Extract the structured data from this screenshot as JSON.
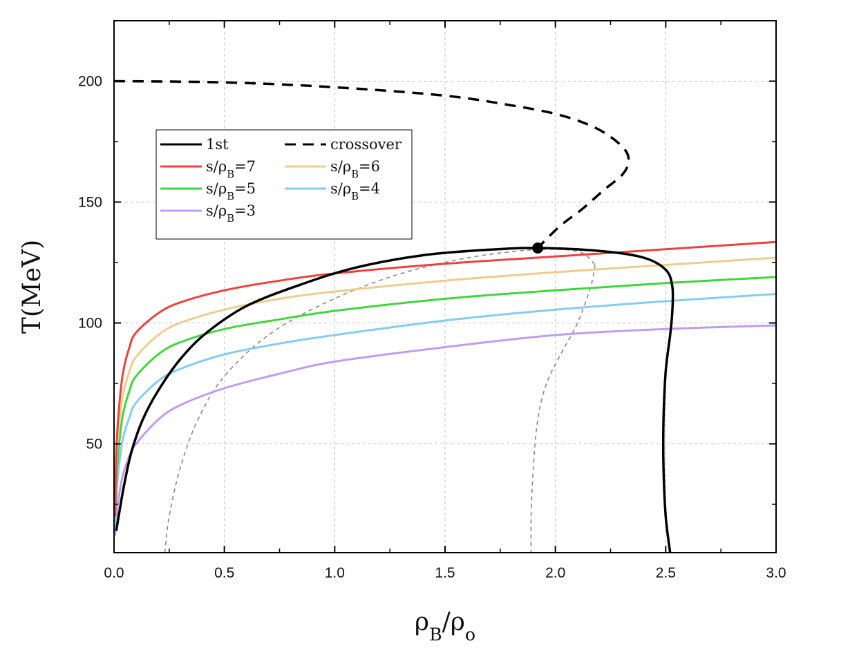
{
  "chart_data": {
    "type": "line",
    "title": "",
    "xlabel": "ρB/ρo",
    "ylabel": "T(MeV)",
    "xlim": [
      0,
      3.0
    ],
    "ylim": [
      5,
      225
    ],
    "xticks": [
      0.0,
      0.5,
      1.0,
      1.5,
      2.0,
      2.5,
      3.0
    ],
    "xtick_labels": [
      "0.0",
      "0.5",
      "1.0",
      "1.5",
      "2.0",
      "2.5",
      "3.0"
    ],
    "yticks": [
      50,
      100,
      150,
      200
    ],
    "ytick_labels": [
      "50",
      "100",
      "150",
      "200"
    ],
    "grid": true,
    "legend_position": "upper-left",
    "series": [
      {
        "name": "1st",
        "legend": true,
        "style": "solid",
        "color": "#000000",
        "points": [
          [
            2.52,
            5
          ],
          [
            2.5,
            20
          ],
          [
            2.49,
            40
          ],
          [
            2.49,
            60
          ],
          [
            2.5,
            80
          ],
          [
            2.52,
            95
          ],
          [
            2.53,
            105
          ],
          [
            2.53,
            115
          ],
          [
            2.5,
            122
          ],
          [
            2.4,
            127
          ],
          [
            2.2,
            129.8
          ],
          [
            1.92,
            131
          ],
          [
            1.7,
            130.3
          ],
          [
            1.4,
            128
          ],
          [
            1.1,
            123
          ],
          [
            0.85,
            116
          ],
          [
            0.6,
            107
          ],
          [
            0.42,
            96
          ],
          [
            0.3,
            85
          ],
          [
            0.2,
            72
          ],
          [
            0.13,
            60
          ],
          [
            0.08,
            47
          ],
          [
            0.05,
            35
          ],
          [
            0.03,
            25
          ],
          [
            0.01,
            14
          ]
        ]
      },
      {
        "name": "crossover",
        "legend": true,
        "style": "dashed",
        "color": "#000000",
        "points": [
          [
            0.0,
            200
          ],
          [
            0.5,
            199.5
          ],
          [
            1.0,
            197.5
          ],
          [
            1.5,
            194
          ],
          [
            1.8,
            190
          ],
          [
            2.0,
            186.5
          ],
          [
            2.15,
            182
          ],
          [
            2.25,
            177
          ],
          [
            2.32,
            171
          ],
          [
            2.33,
            166
          ],
          [
            2.3,
            161
          ],
          [
            2.22,
            155
          ],
          [
            2.12,
            147
          ],
          [
            2.02,
            140
          ],
          [
            1.92,
            131
          ]
        ]
      },
      {
        "name": "s/ρB=7",
        "legend": true,
        "style": "solid",
        "color": "#e8433e",
        "points": [
          [
            0.005,
            20
          ],
          [
            0.01,
            45
          ],
          [
            0.02,
            62
          ],
          [
            0.04,
            79
          ],
          [
            0.07,
            90
          ],
          [
            0.1,
            96
          ],
          [
            0.2,
            104
          ],
          [
            0.3,
            108.5
          ],
          [
            0.5,
            113.5
          ],
          [
            0.75,
            117.5
          ],
          [
            1.0,
            120.5
          ],
          [
            1.5,
            124.5
          ],
          [
            2.0,
            127.5
          ],
          [
            2.5,
            130.5
          ],
          [
            3.0,
            133.5
          ]
        ]
      },
      {
        "name": "s/ρB=6",
        "legend": true,
        "style": "solid",
        "color": "#efcc8e",
        "points": [
          [
            0.005,
            20
          ],
          [
            0.01,
            40
          ],
          [
            0.02,
            55
          ],
          [
            0.04,
            70
          ],
          [
            0.07,
            80
          ],
          [
            0.1,
            86
          ],
          [
            0.2,
            95
          ],
          [
            0.3,
            100
          ],
          [
            0.5,
            105.5
          ],
          [
            0.75,
            110
          ],
          [
            1.0,
            113
          ],
          [
            1.5,
            117.5
          ],
          [
            2.0,
            121
          ],
          [
            2.5,
            124
          ],
          [
            3.0,
            127
          ]
        ]
      },
      {
        "name": "s/ρB=5",
        "legend": true,
        "style": "solid",
        "color": "#3fd63c",
        "points": [
          [
            0.005,
            20
          ],
          [
            0.01,
            33
          ],
          [
            0.02,
            47
          ],
          [
            0.04,
            62
          ],
          [
            0.07,
            72
          ],
          [
            0.1,
            78
          ],
          [
            0.2,
            87
          ],
          [
            0.3,
            92
          ],
          [
            0.5,
            97.5
          ],
          [
            0.75,
            101.5
          ],
          [
            1.0,
            105
          ],
          [
            1.5,
            110
          ],
          [
            2.0,
            113.5
          ],
          [
            2.5,
            116.5
          ],
          [
            3.0,
            119
          ]
        ]
      },
      {
        "name": "s/ρB=4",
        "legend": true,
        "style": "solid",
        "color": "#86ccf0",
        "points": [
          [
            0.005,
            15
          ],
          [
            0.01,
            27
          ],
          [
            0.02,
            39
          ],
          [
            0.04,
            52
          ],
          [
            0.07,
            61
          ],
          [
            0.1,
            67
          ],
          [
            0.2,
            76
          ],
          [
            0.3,
            81
          ],
          [
            0.5,
            87
          ],
          [
            0.75,
            91.5
          ],
          [
            1.0,
            95
          ],
          [
            1.5,
            101
          ],
          [
            2.0,
            105.5
          ],
          [
            2.5,
            109
          ],
          [
            3.0,
            112
          ]
        ]
      },
      {
        "name": "s/ρB=3",
        "legend": true,
        "style": "solid",
        "color": "#c29af0",
        "points": [
          [
            0.005,
            12
          ],
          [
            0.01,
            18
          ],
          [
            0.02,
            27
          ],
          [
            0.04,
            37
          ],
          [
            0.07,
            45
          ],
          [
            0.1,
            50
          ],
          [
            0.2,
            60
          ],
          [
            0.3,
            66
          ],
          [
            0.5,
            73
          ],
          [
            0.75,
            79
          ],
          [
            1.0,
            84
          ],
          [
            1.5,
            90
          ],
          [
            2.0,
            95
          ],
          [
            2.5,
            97.5
          ],
          [
            3.0,
            99
          ]
        ]
      },
      {
        "name": "spinodal-left",
        "legend": false,
        "style": "dashed-thin",
        "color": "#888888",
        "points": [
          [
            0.23,
            5
          ],
          [
            0.25,
            20
          ],
          [
            0.3,
            40
          ],
          [
            0.38,
            60
          ],
          [
            0.5,
            78
          ],
          [
            0.7,
            95
          ],
          [
            0.95,
            108
          ],
          [
            1.25,
            119
          ],
          [
            1.55,
            126
          ],
          [
            1.8,
            129.5
          ],
          [
            2.0,
            130.5
          ],
          [
            2.12,
            129
          ],
          [
            2.18,
            124
          ]
        ]
      },
      {
        "name": "spinodal-right",
        "legend": false,
        "style": "dashed-thin",
        "color": "#888888",
        "points": [
          [
            2.18,
            124
          ],
          [
            2.16,
            115
          ],
          [
            2.1,
            100
          ],
          [
            2.03,
            88
          ],
          [
            1.96,
            75
          ],
          [
            1.92,
            60
          ],
          [
            1.9,
            40
          ],
          [
            1.89,
            20
          ],
          [
            1.89,
            5
          ]
        ]
      }
    ],
    "critical_point": {
      "x": 1.92,
      "y": 131
    },
    "legend_entries": [
      {
        "label": "1st",
        "color": "#000000",
        "style": "solid"
      },
      {
        "label": "crossover",
        "color": "#000000",
        "style": "dashed"
      },
      {
        "label": "s/ρB=7",
        "color": "#e8433e",
        "style": "solid"
      },
      {
        "label": "s/ρB=6",
        "color": "#efcc8e",
        "style": "solid"
      },
      {
        "label": "s/ρB=5",
        "color": "#3fd63c",
        "style": "solid"
      },
      {
        "label": "s/ρB=4",
        "color": "#86ccf0",
        "style": "solid"
      },
      {
        "label": "s/ρB=3",
        "color": "#c29af0",
        "style": "solid"
      }
    ]
  }
}
